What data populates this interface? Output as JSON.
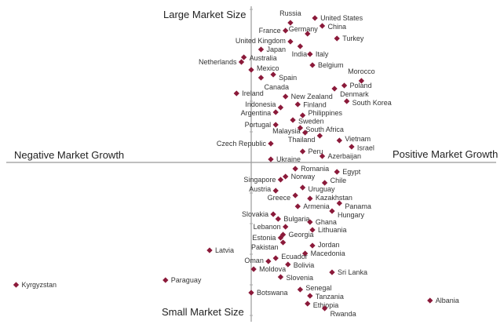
{
  "chart_data": {
    "type": "scatter",
    "title": "",
    "quadrant_labels": {
      "top": "Large Market Size",
      "bottom": "Small Market Size",
      "left": "Negative Market Growth",
      "right": "Positive Market Growth"
    },
    "xlim": [
      -100,
      100
    ],
    "ylim": [
      -100,
      100
    ],
    "grid": false,
    "marker_color": "#8b1a3a",
    "points": [
      {
        "label": "Russia",
        "x": 16,
        "y": 89
      },
      {
        "label": "United States",
        "x": 26,
        "y": 92
      },
      {
        "label": "China",
        "x": 29,
        "y": 87
      },
      {
        "label": "Germany",
        "x": 23,
        "y": 82
      },
      {
        "label": "France",
        "x": 14,
        "y": 84
      },
      {
        "label": "Turkey",
        "x": 35,
        "y": 79
      },
      {
        "label": "United Kingdom",
        "x": 16,
        "y": 77
      },
      {
        "label": "India",
        "x": 20,
        "y": 74
      },
      {
        "label": "Japan",
        "x": 4,
        "y": 72
      },
      {
        "label": "Italy",
        "x": 24,
        "y": 69
      },
      {
        "label": "Australia",
        "x": -3,
        "y": 67
      },
      {
        "label": "Netherlands",
        "x": -4,
        "y": 64
      },
      {
        "label": "Belgium",
        "x": 25,
        "y": 62
      },
      {
        "label": "Mexico",
        "x": 0,
        "y": 59
      },
      {
        "label": "Spain",
        "x": 9,
        "y": 56
      },
      {
        "label": "Canada",
        "x": 4,
        "y": 54
      },
      {
        "label": "Morocco",
        "x": 45,
        "y": 52
      },
      {
        "label": "Poland",
        "x": 38,
        "y": 49
      },
      {
        "label": "Denmark",
        "x": 34,
        "y": 47
      },
      {
        "label": "Ireland",
        "x": -6,
        "y": 44
      },
      {
        "label": "New Zealand",
        "x": 14,
        "y": 42
      },
      {
        "label": "South Korea",
        "x": 39,
        "y": 39
      },
      {
        "label": "Finland",
        "x": 19,
        "y": 37
      },
      {
        "label": "Indonesia",
        "x": 12,
        "y": 35
      },
      {
        "label": "Argentina",
        "x": 10,
        "y": 32
      },
      {
        "label": "Philippines",
        "x": 21,
        "y": 30
      },
      {
        "label": "Sweden",
        "x": 17,
        "y": 27
      },
      {
        "label": "Portugal",
        "x": 10,
        "y": 24
      },
      {
        "label": "South Africa",
        "x": 20,
        "y": 22
      },
      {
        "label": "Malaysia",
        "x": 22,
        "y": 19
      },
      {
        "label": "Thailand",
        "x": 28,
        "y": 17
      },
      {
        "label": "Vietnam",
        "x": 36,
        "y": 14
      },
      {
        "label": "Czech Republic",
        "x": 8,
        "y": 12
      },
      {
        "label": "Israel",
        "x": 41,
        "y": 10
      },
      {
        "label": "Peru",
        "x": 21,
        "y": 7
      },
      {
        "label": "Azerbaijan",
        "x": 29,
        "y": 4
      },
      {
        "label": "Ukraine",
        "x": 8,
        "y": 2
      },
      {
        "label": "Romania",
        "x": 18,
        "y": -4
      },
      {
        "label": "Egypt",
        "x": 35,
        "y": -6
      },
      {
        "label": "Norway",
        "x": 14,
        "y": -9
      },
      {
        "label": "Singapore",
        "x": 12,
        "y": -11
      },
      {
        "label": "Chile",
        "x": 30,
        "y": -13
      },
      {
        "label": "Uruguay",
        "x": 21,
        "y": -16
      },
      {
        "label": "Austria",
        "x": 10,
        "y": -18
      },
      {
        "label": "Greece",
        "x": 18,
        "y": -21
      },
      {
        "label": "Kazakhstan",
        "x": 24,
        "y": -23
      },
      {
        "label": "Panama",
        "x": 36,
        "y": -26
      },
      {
        "label": "Armenia",
        "x": 19,
        "y": -28
      },
      {
        "label": "Hungary",
        "x": 33,
        "y": -31
      },
      {
        "label": "Slovakia",
        "x": 9,
        "y": -33
      },
      {
        "label": "Bulgaria",
        "x": 11,
        "y": -36
      },
      {
        "label": "Ghana",
        "x": 24,
        "y": -38
      },
      {
        "label": "Lebanon",
        "x": 14,
        "y": -41
      },
      {
        "label": "Lithuania",
        "x": 25,
        "y": -43
      },
      {
        "label": "Georgia",
        "x": 13,
        "y": -46
      },
      {
        "label": "Estonia",
        "x": 12,
        "y": -48
      },
      {
        "label": "Pakistan",
        "x": 13,
        "y": -51
      },
      {
        "label": "Jordan",
        "x": 25,
        "y": -53
      },
      {
        "label": "Latvia",
        "x": -17,
        "y": -56
      },
      {
        "label": "Macedonia",
        "x": 22,
        "y": -58
      },
      {
        "label": "Ecuador",
        "x": 10,
        "y": -61
      },
      {
        "label": "Oman",
        "x": 7,
        "y": -63
      },
      {
        "label": "Bolivia",
        "x": 15,
        "y": -65
      },
      {
        "label": "Moldova",
        "x": 1,
        "y": -68
      },
      {
        "label": "Sri Lanka",
        "x": 33,
        "y": -70
      },
      {
        "label": "Slovenia",
        "x": 12,
        "y": -73
      },
      {
        "label": "Paraguay",
        "x": -35,
        "y": -75
      },
      {
        "label": "Kyrgyzstan",
        "x": -96,
        "y": -78
      },
      {
        "label": "Senegal",
        "x": 20,
        "y": -81
      },
      {
        "label": "Botswana",
        "x": 0,
        "y": -83
      },
      {
        "label": "Tanzania",
        "x": 24,
        "y": -85
      },
      {
        "label": "Albania",
        "x": 73,
        "y": -88
      },
      {
        "label": "Ethiopia",
        "x": 23,
        "y": -90
      },
      {
        "label": "Rwanda",
        "x": 30,
        "y": -93
      }
    ]
  }
}
